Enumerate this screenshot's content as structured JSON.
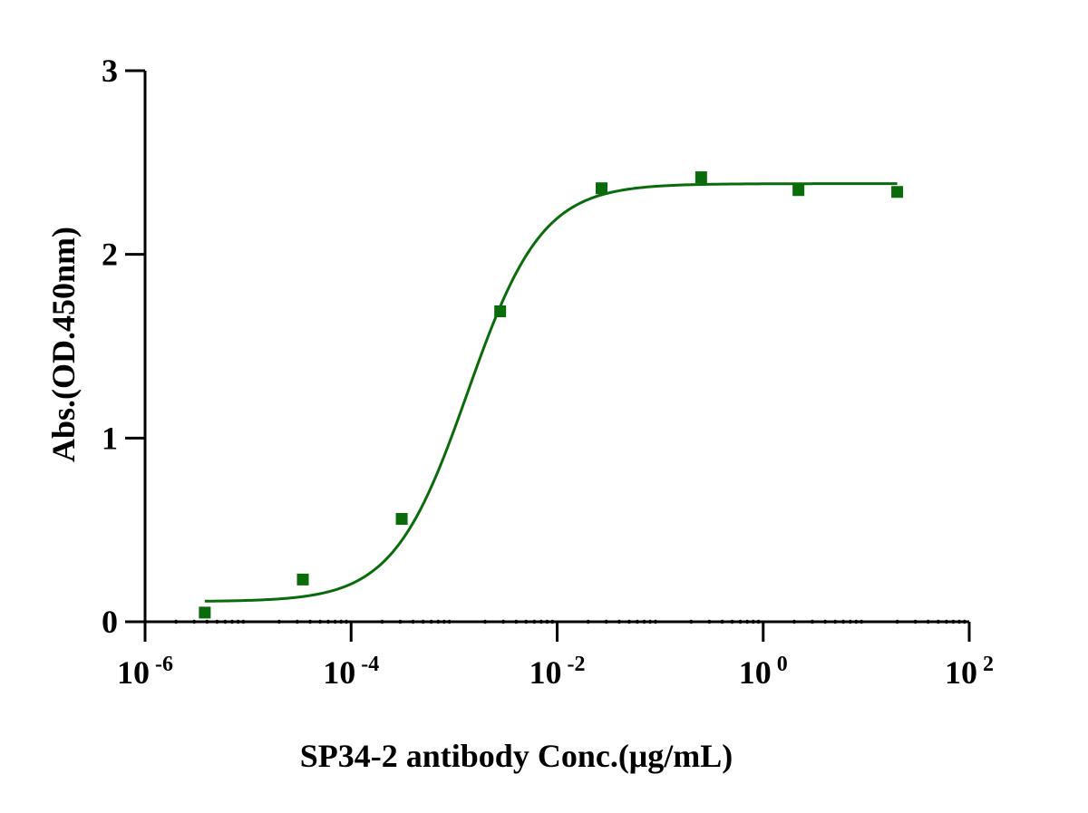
{
  "chart_data": {
    "type": "scatter",
    "title": "",
    "xlabel": "SP34-2 antibody  Conc.(μg/mL)",
    "ylabel": "Abs.(OD.450nm)",
    "x_scale": "log10",
    "xlim": [
      1e-06,
      100
    ],
    "ylim": [
      0,
      3
    ],
    "x_ticks": [
      {
        "base": "10",
        "exp": "-6",
        "value": 1e-06
      },
      {
        "base": "10",
        "exp": "-4",
        "value": 0.0001
      },
      {
        "base": "10",
        "exp": "-2",
        "value": 0.01
      },
      {
        "base": "10",
        "exp": "0",
        "value": 1
      },
      {
        "base": "10",
        "exp": "2",
        "value": 100
      }
    ],
    "y_ticks": [
      {
        "label": "0",
        "value": 0
      },
      {
        "label": "1",
        "value": 1
      },
      {
        "label": "2",
        "value": 2
      },
      {
        "label": "3",
        "value": 3
      }
    ],
    "series": [
      {
        "marker": "square",
        "color": "#0a6b0a",
        "points": [
          {
            "x": 3.8e-06,
            "y": 0.05
          },
          {
            "x": 3.4e-05,
            "y": 0.23
          },
          {
            "x": 0.00031,
            "y": 0.56
          },
          {
            "x": 0.0028,
            "y": 1.69
          },
          {
            "x": 0.027,
            "y": 2.36
          },
          {
            "x": 0.25,
            "y": 2.42
          },
          {
            "x": 2.2,
            "y": 2.35
          },
          {
            "x": 20,
            "y": 2.34
          }
        ]
      }
    ],
    "fit_curve": {
      "model": "4PL",
      "color": "#0a6b0a",
      "bottom": 0.11,
      "top": 2.385,
      "ec50": 0.00135,
      "hill": 1.2,
      "x_range": [
        3.8e-06,
        20
      ]
    },
    "grid": false,
    "legend": "none"
  }
}
